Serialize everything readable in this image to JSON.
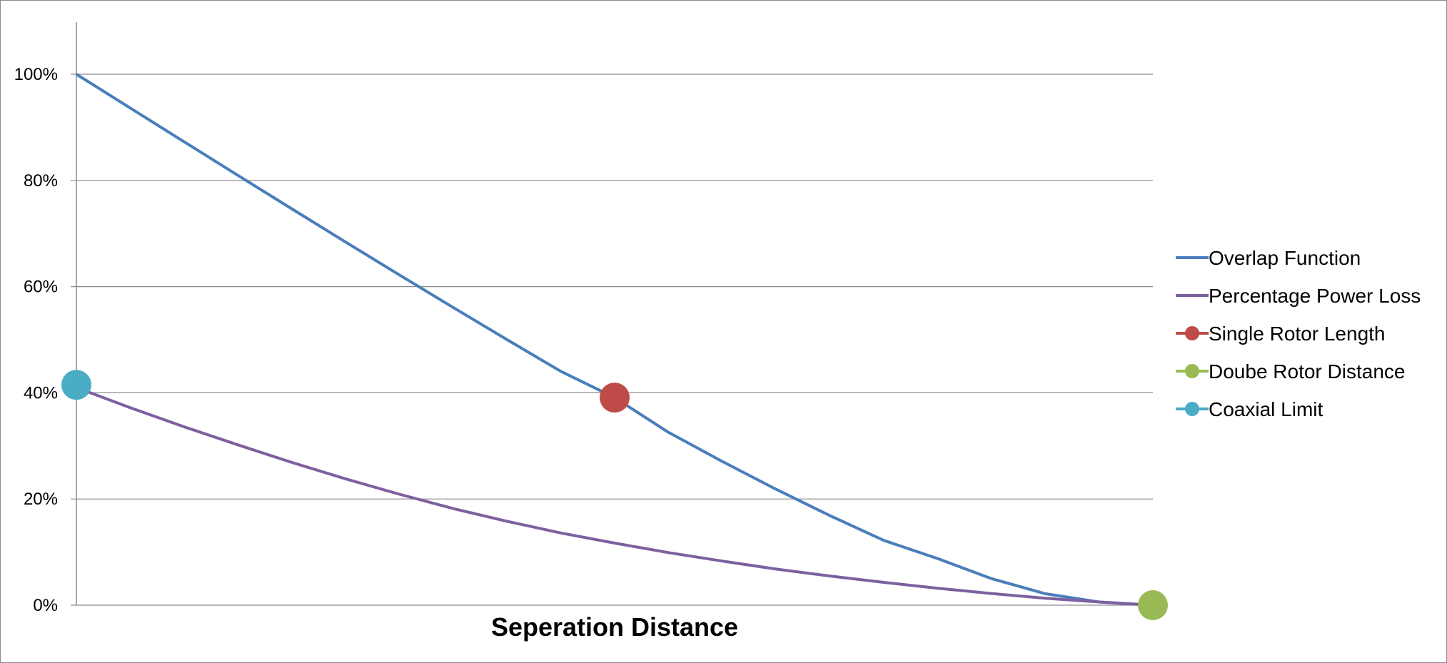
{
  "chart_data": {
    "type": "line",
    "title": "",
    "xlabel": "Seperation Distance",
    "ylabel": "",
    "xlim": [
      0,
      1
    ],
    "ylim": [
      0,
      1
    ],
    "yticks": [
      0,
      0.2,
      0.4,
      0.6,
      0.8,
      1.0
    ],
    "ytick_labels": [
      "0%",
      "20%",
      "40%",
      "60%",
      "80%",
      "100%"
    ],
    "grid": true,
    "legend_position": "right",
    "series": [
      {
        "name": "Overlap Function",
        "kind": "line",
        "color": "#4a7ebb",
        "x": [
          0,
          0.05,
          0.1,
          0.15,
          0.2,
          0.25,
          0.3,
          0.35,
          0.4,
          0.45,
          0.5,
          0.55,
          0.6,
          0.65,
          0.7,
          0.75,
          0.8,
          0.85,
          0.9,
          0.95,
          1.0
        ],
        "y": [
          1.0,
          0.9364,
          0.8729,
          0.8096,
          0.7466,
          0.684,
          0.622,
          0.5607,
          0.5002,
          0.4405,
          0.391,
          0.3255,
          0.2707,
          0.2183,
          0.1687,
          0.1221,
          0.0879,
          0.0502,
          0.0216,
          0.006,
          0.0
        ]
      },
      {
        "name": "Percentage Power Loss",
        "kind": "line",
        "color": "#7d60a0",
        "x": [
          0,
          0.05,
          0.1,
          0.15,
          0.2,
          0.25,
          0.3,
          0.35,
          0.4,
          0.45,
          0.5,
          0.55,
          0.6,
          0.65,
          0.7,
          0.75,
          0.8,
          0.85,
          0.9,
          0.95,
          1.0
        ],
        "y": [
          0.41,
          0.372,
          0.336,
          0.302,
          0.269,
          0.238,
          0.209,
          0.182,
          0.158,
          0.136,
          0.117,
          0.099,
          0.083,
          0.068,
          0.055,
          0.043,
          0.032,
          0.022,
          0.013,
          0.006,
          0.0
        ]
      },
      {
        "name": "Single Rotor Length",
        "kind": "point",
        "color": "#be4b48",
        "x": [
          0.5
        ],
        "y": [
          0.391
        ]
      },
      {
        "name": "Doube Rotor Distance",
        "kind": "point",
        "color": "#98b954",
        "x": [
          1.0
        ],
        "y": [
          0.0
        ]
      },
      {
        "name": "Coaxial Limit",
        "kind": "point",
        "color": "#4bacc6",
        "x": [
          0.0
        ],
        "y": [
          0.415
        ]
      }
    ]
  }
}
